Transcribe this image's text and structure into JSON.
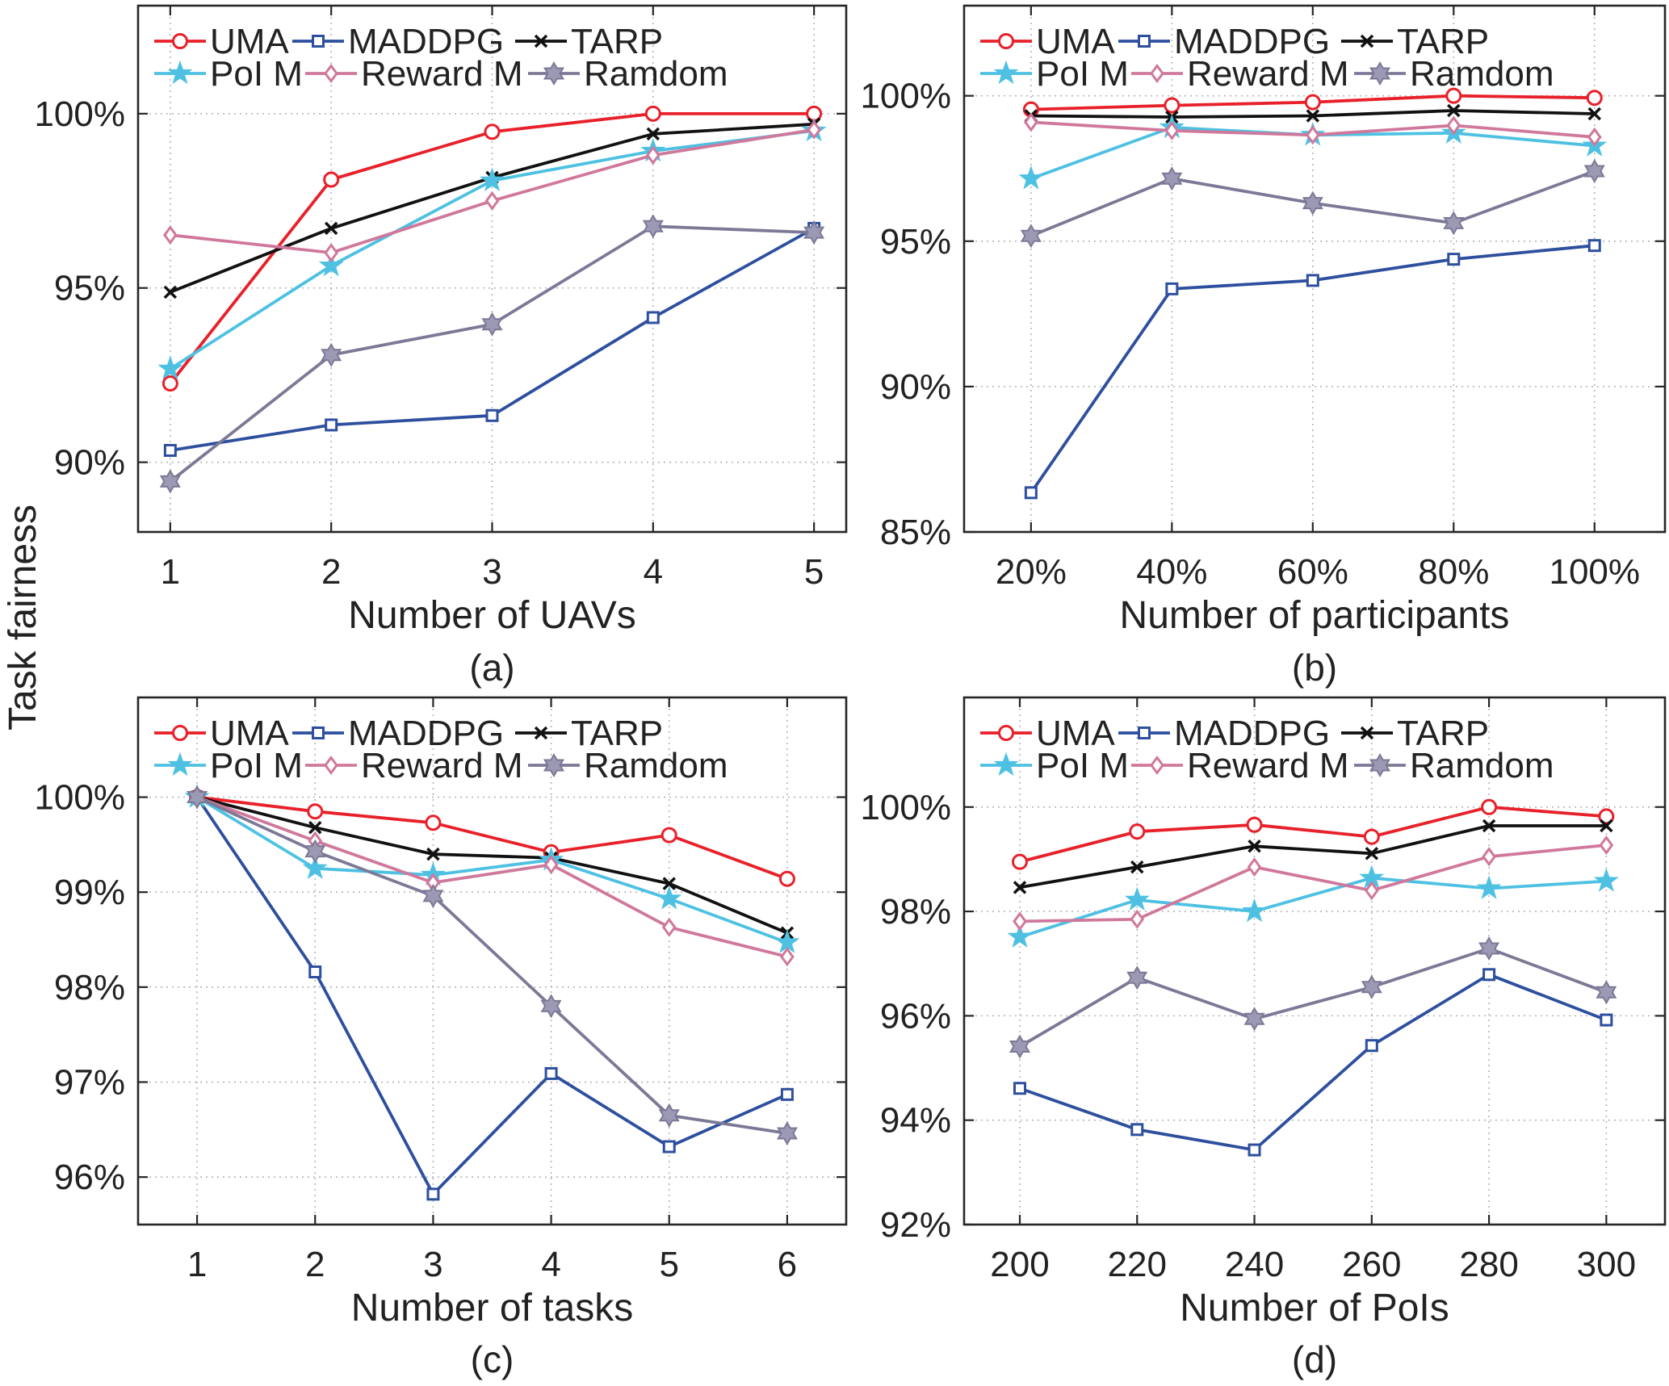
{
  "figure": {
    "ylabel": "Task fairness"
  },
  "chart_data": [
    {
      "caption": "(a)",
      "type": "line",
      "xlabel": "Number of UAVs",
      "x": [
        1,
        2,
        3,
        4,
        5
      ],
      "xtick_labels": [
        "1",
        "2",
        "3",
        "4",
        "5"
      ],
      "xlim": [
        0.8,
        5.2
      ],
      "ylim": [
        88,
        103.1
      ],
      "yticks": [
        90,
        95,
        100
      ],
      "ytick_labels": [
        "90%",
        "95%",
        "100%"
      ],
      "grid": true,
      "legend_position": "top-left",
      "series": [
        {
          "name": "UMA",
          "color": "#e8202a",
          "marker": "circle",
          "marker_fill": "#ffffff",
          "values": [
            92.26,
            98.11,
            99.48,
            100.0,
            100.0
          ]
        },
        {
          "name": "MADDPG",
          "color": "#2d4f9e",
          "marker": "square",
          "marker_fill": "#ffffff",
          "values": [
            90.34,
            91.07,
            91.34,
            94.15,
            96.71
          ]
        },
        {
          "name": "TARP",
          "color": "#111111",
          "marker": "x",
          "marker_fill": "none",
          "values": [
            94.88,
            96.71,
            98.17,
            99.42,
            99.7
          ]
        },
        {
          "name": "PoI M",
          "color": "#4ec1e2",
          "marker": "star",
          "marker_fill": "#4ec1e2",
          "values": [
            92.68,
            95.64,
            98.08,
            98.93,
            99.51
          ]
        },
        {
          "name": "Reward M",
          "color": "#d0789b",
          "marker": "diamond",
          "marker_fill": "#ffffff",
          "values": [
            96.52,
            96.01,
            97.5,
            98.81,
            99.54
          ]
        },
        {
          "name": "Ramdom",
          "color": "#7b7996",
          "marker": "hexagram",
          "marker_fill": "#9b99b3",
          "values": [
            89.45,
            93.08,
            93.96,
            96.77,
            96.59
          ]
        }
      ]
    },
    {
      "caption": "(b)",
      "type": "line",
      "xlabel": "Number of participants",
      "x": [
        20,
        40,
        60,
        80,
        100
      ],
      "xtick_labels": [
        "20%",
        "40%",
        "60%",
        "80%",
        "100%"
      ],
      "xlim": [
        10.5,
        110
      ],
      "ylim": [
        85,
        103.1
      ],
      "yticks": [
        85,
        90,
        95,
        100
      ],
      "ytick_labels": [
        "85%",
        "90%",
        "95%",
        "100%"
      ],
      "grid": true,
      "legend_position": "top-left",
      "series": [
        {
          "name": "UMA",
          "color": "#e8202a",
          "marker": "circle",
          "marker_fill": "#ffffff",
          "values": [
            99.53,
            99.67,
            99.78,
            100.0,
            99.93
          ]
        },
        {
          "name": "MADDPG",
          "color": "#2d4f9e",
          "marker": "square",
          "marker_fill": "#ffffff",
          "values": [
            86.35,
            93.36,
            93.65,
            94.38,
            94.85
          ]
        },
        {
          "name": "TARP",
          "color": "#111111",
          "marker": "x",
          "marker_fill": "none",
          "values": [
            99.31,
            99.27,
            99.31,
            99.49,
            99.38
          ]
        },
        {
          "name": "PoI M",
          "color": "#4ec1e2",
          "marker": "star",
          "marker_fill": "#4ec1e2",
          "values": [
            97.15,
            98.91,
            98.65,
            98.72,
            98.28
          ]
        },
        {
          "name": "Reward M",
          "color": "#d0789b",
          "marker": "diamond",
          "marker_fill": "#ffffff",
          "values": [
            99.09,
            98.8,
            98.65,
            98.98,
            98.58
          ]
        },
        {
          "name": "Ramdom",
          "color": "#7b7996",
          "marker": "hexagram",
          "marker_fill": "#9b99b3",
          "values": [
            95.18,
            97.15,
            96.31,
            95.62,
            97.41
          ]
        }
      ]
    },
    {
      "caption": "(c)",
      "type": "line",
      "xlabel": "Number of tasks",
      "x": [
        1,
        2,
        3,
        4,
        5,
        6
      ],
      "xtick_labels": [
        "1",
        "2",
        "3",
        "4",
        "5",
        "6"
      ],
      "xlim": [
        0.5,
        6.5
      ],
      "ylim": [
        95.5,
        101.05
      ],
      "yticks": [
        96,
        97,
        98,
        99,
        100
      ],
      "ytick_labels": [
        "96%",
        "97%",
        "98%",
        "99%",
        "100%"
      ],
      "grid": true,
      "legend_position": "top-left",
      "series": [
        {
          "name": "UMA",
          "color": "#e8202a",
          "marker": "circle",
          "marker_fill": "#ffffff",
          "values": [
            100.0,
            99.85,
            99.73,
            99.42,
            99.6,
            99.14
          ]
        },
        {
          "name": "MADDPG",
          "color": "#2d4f9e",
          "marker": "square",
          "marker_fill": "#ffffff",
          "values": [
            100.0,
            98.16,
            95.82,
            97.09,
            96.32,
            96.87
          ]
        },
        {
          "name": "TARP",
          "color": "#111111",
          "marker": "x",
          "marker_fill": "none",
          "values": [
            100.0,
            99.68,
            99.4,
            99.36,
            99.09,
            98.57
          ]
        },
        {
          "name": "PoI M",
          "color": "#4ec1e2",
          "marker": "star",
          "marker_fill": "#4ec1e2",
          "values": [
            100.0,
            99.25,
            99.18,
            99.34,
            98.93,
            98.47
          ]
        },
        {
          "name": "Reward M",
          "color": "#d0789b",
          "marker": "diamond",
          "marker_fill": "#ffffff",
          "values": [
            100.0,
            99.54,
            99.1,
            99.29,
            98.63,
            98.32
          ]
        },
        {
          "name": "Ramdom",
          "color": "#7b7996",
          "marker": "hexagram",
          "marker_fill": "#9b99b3",
          "values": [
            100.0,
            99.43,
            98.96,
            97.8,
            96.65,
            96.46
          ]
        }
      ]
    },
    {
      "caption": "(d)",
      "type": "line",
      "xlabel": "Number of PoIs",
      "x": [
        200,
        220,
        240,
        260,
        280,
        300
      ],
      "xtick_labels": [
        "200",
        "220",
        "240",
        "260",
        "280",
        "300"
      ],
      "xlim": [
        190.5,
        310
      ],
      "ylim": [
        92,
        102.1
      ],
      "yticks": [
        92,
        94,
        96,
        98,
        100
      ],
      "ytick_labels": [
        "92%",
        "94%",
        "96%",
        "98%",
        "100%"
      ],
      "grid": true,
      "legend_position": "top-left",
      "series": [
        {
          "name": "UMA",
          "color": "#e8202a",
          "marker": "circle",
          "marker_fill": "#ffffff",
          "values": [
            98.95,
            99.53,
            99.66,
            99.43,
            100.0,
            99.82
          ]
        },
        {
          "name": "MADDPG",
          "color": "#2d4f9e",
          "marker": "square",
          "marker_fill": "#ffffff",
          "values": [
            94.61,
            93.82,
            93.43,
            95.43,
            96.79,
            95.92
          ]
        },
        {
          "name": "TARP",
          "color": "#111111",
          "marker": "x",
          "marker_fill": "none",
          "values": [
            98.46,
            98.85,
            99.25,
            99.11,
            99.64,
            99.64
          ]
        },
        {
          "name": "PoI M",
          "color": "#4ec1e2",
          "marker": "star",
          "marker_fill": "#4ec1e2",
          "values": [
            97.51,
            98.22,
            98.0,
            98.64,
            98.44,
            98.58
          ]
        },
        {
          "name": "Reward M",
          "color": "#d0789b",
          "marker": "diamond",
          "marker_fill": "#ffffff",
          "values": [
            97.81,
            97.85,
            98.85,
            98.4,
            99.05,
            99.27
          ]
        },
        {
          "name": "Ramdom",
          "color": "#7b7996",
          "marker": "hexagram",
          "marker_fill": "#9b99b3",
          "values": [
            95.41,
            96.73,
            95.94,
            96.55,
            97.29,
            96.45
          ]
        }
      ]
    }
  ]
}
